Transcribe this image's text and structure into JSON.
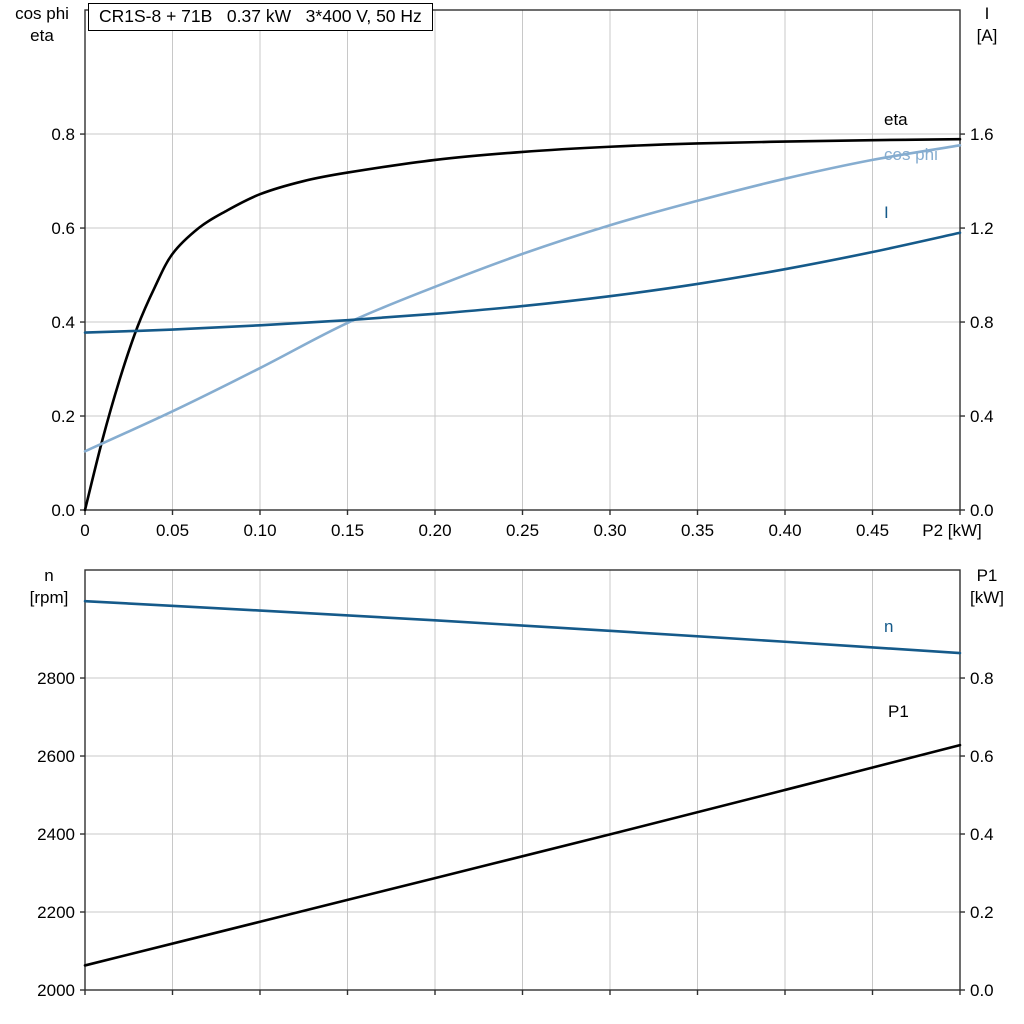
{
  "colors": {
    "grid": "#c8c8c8",
    "frame": "#303030",
    "text": "#000000"
  },
  "chart_data": [
    {
      "type": "line",
      "title": "CR1S-8 + 71B   0.37 kW   3*400 V, 50 Hz",
      "x": {
        "label": "P2 [kW]",
        "min": 0,
        "max": 0.5,
        "ticks": [
          0,
          0.05,
          0.1,
          0.15,
          0.2,
          0.25,
          0.3,
          0.35,
          0.4,
          0.45,
          0.5
        ],
        "tick_labels": [
          "0",
          "0.05",
          "0.10",
          "0.15",
          "0.20",
          "0.25",
          "0.30",
          "0.35",
          "0.40",
          "0.45",
          ""
        ]
      },
      "y_left": {
        "label_lines": [
          "cos phi",
          "eta"
        ],
        "min": 0,
        "max": 1.064,
        "ticks": [
          0,
          0.2,
          0.4,
          0.6,
          0.8
        ],
        "tick_labels": [
          "0.0",
          "0.2",
          "0.4",
          "0.6",
          "0.8"
        ]
      },
      "y_right": {
        "label_lines": [
          "I",
          "[A]"
        ],
        "min": 0,
        "max": 2.128,
        "ticks": [
          0,
          0.4,
          0.8,
          1.2,
          1.6
        ],
        "tick_labels": [
          "0.0",
          "0.4",
          "0.8",
          "1.2",
          "1.6"
        ]
      },
      "grid": true,
      "series": [
        {
          "name": "eta",
          "axis": "left",
          "color": "#000000",
          "x": [
            0,
            0.01,
            0.02,
            0.03,
            0.04,
            0.05,
            0.065,
            0.08,
            0.1,
            0.125,
            0.15,
            0.2,
            0.25,
            0.3,
            0.35,
            0.4,
            0.45,
            0.5
          ],
          "y": [
            0,
            0.15,
            0.28,
            0.39,
            0.475,
            0.545,
            0.6,
            0.635,
            0.672,
            0.7,
            0.718,
            0.745,
            0.762,
            0.773,
            0.78,
            0.784,
            0.787,
            0.789
          ]
        },
        {
          "name": "cos phi",
          "axis": "left",
          "color": "#86add0",
          "x": [
            0,
            0.05,
            0.1,
            0.15,
            0.2,
            0.25,
            0.3,
            0.35,
            0.4,
            0.45,
            0.5
          ],
          "y": [
            0.125,
            0.21,
            0.302,
            0.398,
            0.475,
            0.545,
            0.606,
            0.658,
            0.705,
            0.745,
            0.776
          ]
        },
        {
          "name": "I",
          "axis": "right",
          "color": "#155a8a",
          "x": [
            0,
            0.05,
            0.1,
            0.15,
            0.2,
            0.25,
            0.3,
            0.35,
            0.4,
            0.45,
            0.5
          ],
          "y": [
            0.755,
            0.768,
            0.786,
            0.808,
            0.835,
            0.868,
            0.91,
            0.962,
            1.025,
            1.098,
            1.18
          ]
        }
      ]
    },
    {
      "type": "line",
      "title": "",
      "x": {
        "label": "",
        "min": 0,
        "max": 0.5,
        "ticks": [
          0,
          0.05,
          0.1,
          0.15,
          0.2,
          0.25,
          0.3,
          0.35,
          0.4,
          0.45,
          0.5
        ],
        "tick_labels": []
      },
      "y_left": {
        "label_lines": [
          "n",
          "[rpm]"
        ],
        "min": 2000,
        "max": 3077,
        "ticks": [
          2000,
          2200,
          2400,
          2600,
          2800
        ],
        "tick_labels": [
          "2000",
          "2200",
          "2400",
          "2600",
          "2800"
        ]
      },
      "y_right": {
        "label_lines": [
          "P1",
          "[kW]"
        ],
        "min": 0,
        "max": 1.077,
        "ticks": [
          0,
          0.2,
          0.4,
          0.6,
          0.8
        ],
        "tick_labels": [
          "0.0",
          "0.2",
          "0.4",
          "0.6",
          "0.8"
        ]
      },
      "grid": true,
      "series": [
        {
          "name": "n",
          "axis": "left",
          "color": "#155a8a",
          "x": [
            0,
            0.1,
            0.2,
            0.3,
            0.4,
            0.5
          ],
          "y": [
            2997,
            2973,
            2948,
            2921,
            2893,
            2864
          ]
        },
        {
          "name": "P1",
          "axis": "right",
          "color": "#000000",
          "x": [
            0,
            0.1,
            0.2,
            0.3,
            0.4,
            0.5
          ],
          "y": [
            0.063,
            0.175,
            0.287,
            0.399,
            0.513,
            0.628
          ]
        }
      ]
    }
  ]
}
